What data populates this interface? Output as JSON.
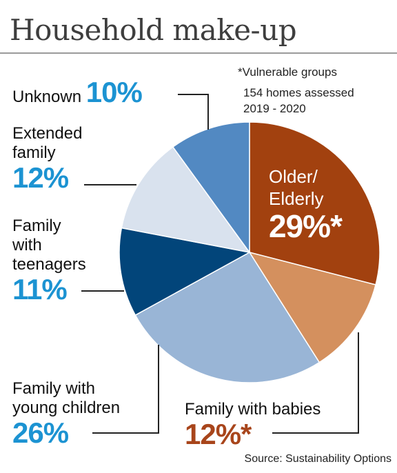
{
  "title": "Household make-up",
  "notes": {
    "vulnerable": "*Vulnerable groups",
    "homes": "154 homes assessed",
    "period": "2019 - 2020"
  },
  "source": "Source: Sustainability Options",
  "chart_data": {
    "type": "pie",
    "title": "Household make-up",
    "slices": [
      {
        "name": "Older/ Elderly",
        "value": 29,
        "label": "29%*",
        "color": "#a2410f"
      },
      {
        "name": "Family with babies",
        "value": 12,
        "label": "12%*",
        "color": "#d4905e"
      },
      {
        "name": "Family with young children",
        "value": 26,
        "label": "26%",
        "color": "#99b5d6"
      },
      {
        "name": "Family with teenagers",
        "value": 11,
        "label": "11%",
        "color": "#02457a"
      },
      {
        "name": "Extended family",
        "value": 12,
        "label": "12%",
        "color": "#d9e2ee"
      },
      {
        "name": "Unknown",
        "value": 10,
        "label": "10%",
        "color": "#5289c2"
      }
    ]
  },
  "labels": {
    "older_line1": "Older/",
    "older_line2": "Elderly",
    "older_pct": "29%*",
    "babies": "Family with babies",
    "babies_pct": "12%*",
    "young_line1": "Family with",
    "young_line2": "young children",
    "young_pct": "26%",
    "teen_line1": "Family",
    "teen_line2": "with",
    "teen_line3": "teenagers",
    "teen_pct": "11%",
    "ext_line1": "Extended",
    "ext_line2": "family",
    "ext_pct": "12%",
    "unknown": "Unknown",
    "unknown_pct": "10%"
  }
}
